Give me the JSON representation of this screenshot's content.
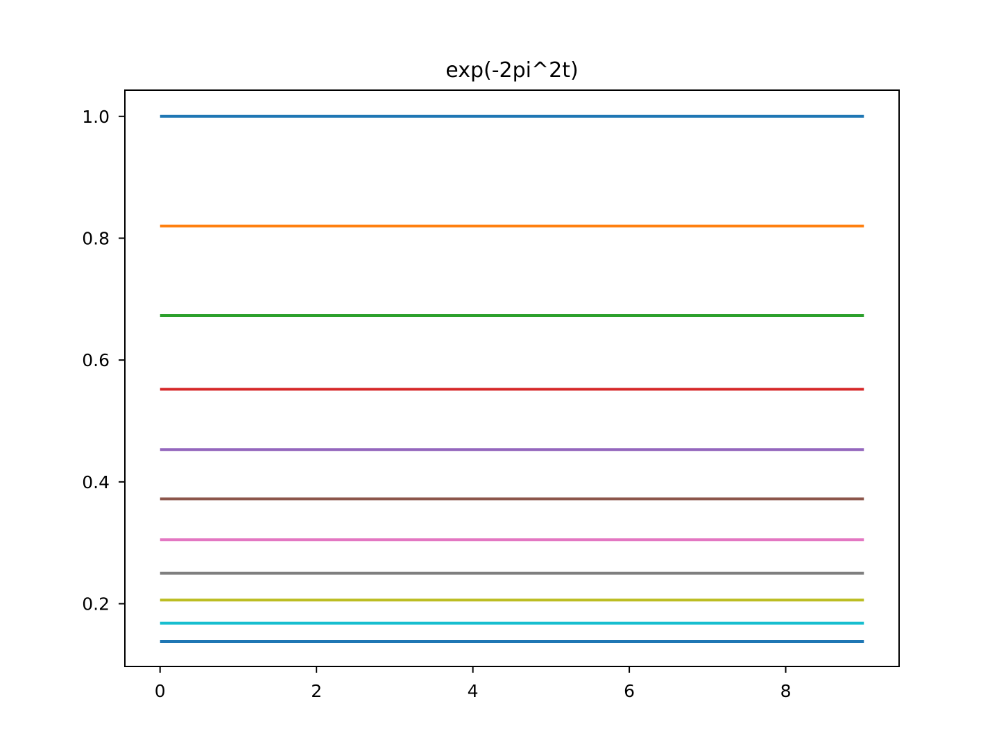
{
  "chart_data": {
    "type": "line",
    "title": "exp(-2pi^2t)",
    "xlabel": "",
    "ylabel": "",
    "x": [
      0,
      1,
      2,
      3,
      4,
      5,
      6,
      7,
      8,
      9
    ],
    "xlim": [
      -0.45,
      9.45
    ],
    "ylim": [
      0.097,
      1.043
    ],
    "xticks": [
      0,
      2,
      4,
      6,
      8
    ],
    "xtick_labels": [
      "0",
      "2",
      "4",
      "6",
      "8"
    ],
    "yticks": [
      0.2,
      0.4,
      0.6,
      0.8,
      1.0
    ],
    "ytick_labels": [
      "0.2",
      "0.4",
      "0.6",
      "0.8",
      "1.0"
    ],
    "grid": false,
    "legend": false,
    "series": [
      {
        "color": "#1f77b4",
        "values": [
          1.0,
          1.0,
          1.0,
          1.0,
          1.0,
          1.0,
          1.0,
          1.0,
          1.0,
          1.0
        ]
      },
      {
        "color": "#ff7f0e",
        "values": [
          0.82,
          0.82,
          0.82,
          0.82,
          0.82,
          0.82,
          0.82,
          0.82,
          0.82,
          0.82
        ]
      },
      {
        "color": "#2ca02c",
        "values": [
          0.673,
          0.673,
          0.673,
          0.673,
          0.673,
          0.673,
          0.673,
          0.673,
          0.673,
          0.673
        ]
      },
      {
        "color": "#d62728",
        "values": [
          0.552,
          0.552,
          0.552,
          0.552,
          0.552,
          0.552,
          0.552,
          0.552,
          0.552,
          0.552
        ]
      },
      {
        "color": "#9467bd",
        "values": [
          0.453,
          0.453,
          0.453,
          0.453,
          0.453,
          0.453,
          0.453,
          0.453,
          0.453,
          0.453
        ]
      },
      {
        "color": "#8c564b",
        "values": [
          0.372,
          0.372,
          0.372,
          0.372,
          0.372,
          0.372,
          0.372,
          0.372,
          0.372,
          0.372
        ]
      },
      {
        "color": "#e377c2",
        "values": [
          0.305,
          0.305,
          0.305,
          0.305,
          0.305,
          0.305,
          0.305,
          0.305,
          0.305,
          0.305
        ]
      },
      {
        "color": "#7f7f7f",
        "values": [
          0.25,
          0.25,
          0.25,
          0.25,
          0.25,
          0.25,
          0.25,
          0.25,
          0.25,
          0.25
        ]
      },
      {
        "color": "#bcbd22",
        "values": [
          0.206,
          0.206,
          0.206,
          0.206,
          0.206,
          0.206,
          0.206,
          0.206,
          0.206,
          0.206
        ]
      },
      {
        "color": "#17becf",
        "values": [
          0.168,
          0.168,
          0.168,
          0.168,
          0.168,
          0.168,
          0.168,
          0.168,
          0.168,
          0.168
        ]
      },
      {
        "color": "#1f77b4",
        "values": [
          0.138,
          0.138,
          0.138,
          0.138,
          0.138,
          0.138,
          0.138,
          0.138,
          0.138,
          0.138
        ]
      }
    ]
  }
}
